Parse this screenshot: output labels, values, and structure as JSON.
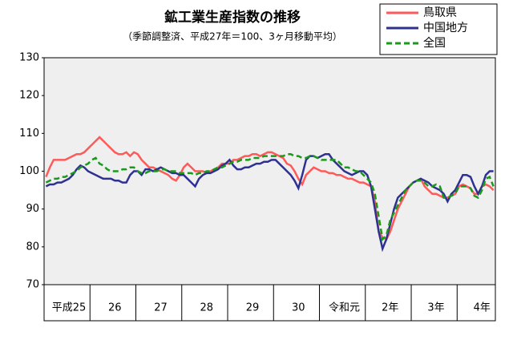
{
  "chart_data": {
    "type": "line",
    "title": "鉱工業生産指数の推移",
    "subtitle": "（季節調整済、平成27年＝100、3ヶ月移動平均）",
    "categories": [
      null,
      null,
      null,
      null,
      null,
      null,
      "平成25",
      null,
      null,
      null,
      null,
      null,
      null,
      null,
      null,
      null,
      null,
      null,
      "26",
      null,
      null,
      null,
      null,
      null,
      null,
      null,
      null,
      null,
      null,
      null,
      "27",
      null,
      null,
      null,
      null,
      null,
      null,
      null,
      null,
      null,
      null,
      null,
      "28",
      null,
      null,
      null,
      null,
      null,
      null,
      null,
      null,
      null,
      null,
      null,
      "29",
      null,
      null,
      null,
      null,
      null,
      null,
      null,
      null,
      null,
      null,
      null,
      "30",
      null,
      null,
      null,
      null,
      null,
      null,
      null,
      null,
      null,
      null,
      null,
      "令和元",
      null,
      null,
      null,
      null,
      null,
      null,
      null,
      null,
      null,
      null,
      null,
      "2年",
      null,
      null,
      null,
      null,
      null,
      null,
      null,
      null,
      null,
      null,
      null,
      "3年",
      null,
      null,
      null,
      null,
      null,
      null,
      null,
      null,
      null,
      null,
      null,
      "4年",
      null,
      null,
      null
    ],
    "series": [
      {
        "name": "鳥取県",
        "color": "#ff5a5a",
        "dash": false,
        "values": [
          98.5,
          101,
          103,
          103,
          103,
          103,
          103.5,
          104,
          104.5,
          104.5,
          105,
          106,
          107,
          108,
          109,
          108,
          107,
          106,
          105,
          104.5,
          104.5,
          105,
          104,
          105,
          104.5,
          103,
          102,
          101,
          101,
          100.5,
          100,
          99.5,
          99,
          98,
          97.5,
          99,
          101,
          102,
          101,
          100,
          100,
          100,
          99.5,
          100,
          100.5,
          101,
          102,
          102,
          102,
          103,
          103,
          103.5,
          104,
          104,
          104.5,
          104.5,
          104,
          104.5,
          105,
          105,
          104.5,
          104,
          103.5,
          102,
          101.5,
          100,
          98,
          96.5,
          99,
          100,
          101,
          100.5,
          100,
          100,
          99.5,
          99.5,
          99,
          99,
          98.5,
          98,
          98,
          97.5,
          97,
          97,
          96.5,
          96,
          92,
          84,
          82.5,
          82,
          84,
          87,
          90,
          92,
          94,
          96,
          97,
          97.5,
          98,
          96,
          95,
          94,
          94,
          93.5,
          93,
          93,
          93.5,
          94,
          96,
          96.5,
          96,
          95.5,
          94,
          94,
          96,
          96.5,
          96,
          95
        ]
      },
      {
        "name": "中国地方",
        "color": "#2e3192",
        "dash": false,
        "values": [
          96,
          96.5,
          96.5,
          97,
          97,
          97.5,
          98,
          99,
          100.5,
          101.5,
          101,
          100,
          99.5,
          99,
          98.5,
          98,
          98,
          98,
          97.5,
          97.5,
          97,
          97,
          99,
          100,
          100,
          99,
          100.5,
          100.5,
          100,
          100.5,
          101,
          100.5,
          100,
          99.5,
          99.5,
          99,
          99,
          98,
          97,
          96,
          98,
          99,
          99.5,
          99.5,
          100,
          100.5,
          101.5,
          102,
          103,
          101.5,
          100.5,
          100.5,
          101,
          101,
          101.5,
          102,
          102,
          102.5,
          102.5,
          103,
          103,
          102,
          101,
          100,
          99,
          97.5,
          95.5,
          99,
          103,
          104,
          104,
          103.5,
          104,
          104.5,
          104.5,
          103,
          102,
          101,
          100,
          99.5,
          99,
          99.5,
          100,
          100,
          99,
          96,
          90,
          84,
          79.5,
          82,
          86,
          90,
          93,
          94,
          95,
          96,
          97,
          97.5,
          98,
          97.5,
          97,
          96,
          95.5,
          95,
          94,
          92,
          94,
          95,
          97,
          99,
          99,
          98.5,
          96,
          94,
          96,
          99,
          100,
          100
        ]
      },
      {
        "name": "全国",
        "color": "#1a9a1a",
        "dash": true,
        "values": [
          97,
          97.5,
          98,
          98,
          98.5,
          98.5,
          99,
          99.5,
          100,
          101,
          101.5,
          102,
          103,
          103.5,
          102,
          101.5,
          100.5,
          100,
          100,
          100,
          100.5,
          100.5,
          101,
          101,
          100,
          99.5,
          99.5,
          100,
          100,
          100,
          100.5,
          100.5,
          100,
          100,
          100,
          99.5,
          99.5,
          99.5,
          99.5,
          99,
          99.5,
          99.5,
          100,
          100,
          100.5,
          101,
          101,
          101.5,
          102,
          102.5,
          102.5,
          103,
          103,
          103,
          103.5,
          103.5,
          103.5,
          104,
          104,
          104,
          104,
          104,
          104,
          104.5,
          104.5,
          104,
          104,
          103.5,
          103.5,
          104,
          104,
          103.5,
          103,
          103,
          103,
          103,
          103,
          102,
          101,
          101,
          100.5,
          100,
          100,
          99,
          98,
          97,
          94,
          88,
          82,
          83,
          87,
          89,
          91,
          93,
          95,
          96,
          97,
          97.5,
          97.5,
          97,
          96,
          96,
          96.5,
          96,
          93,
          93,
          93.5,
          94,
          96,
          96,
          96,
          95.5,
          93.5,
          93,
          95,
          98,
          98.5,
          96
        ]
      }
    ],
    "ylim": [
      70,
      130
    ],
    "yticks": [
      70,
      80,
      90,
      100,
      110,
      120,
      130
    ],
    "grid": false,
    "legend": "top-right"
  }
}
